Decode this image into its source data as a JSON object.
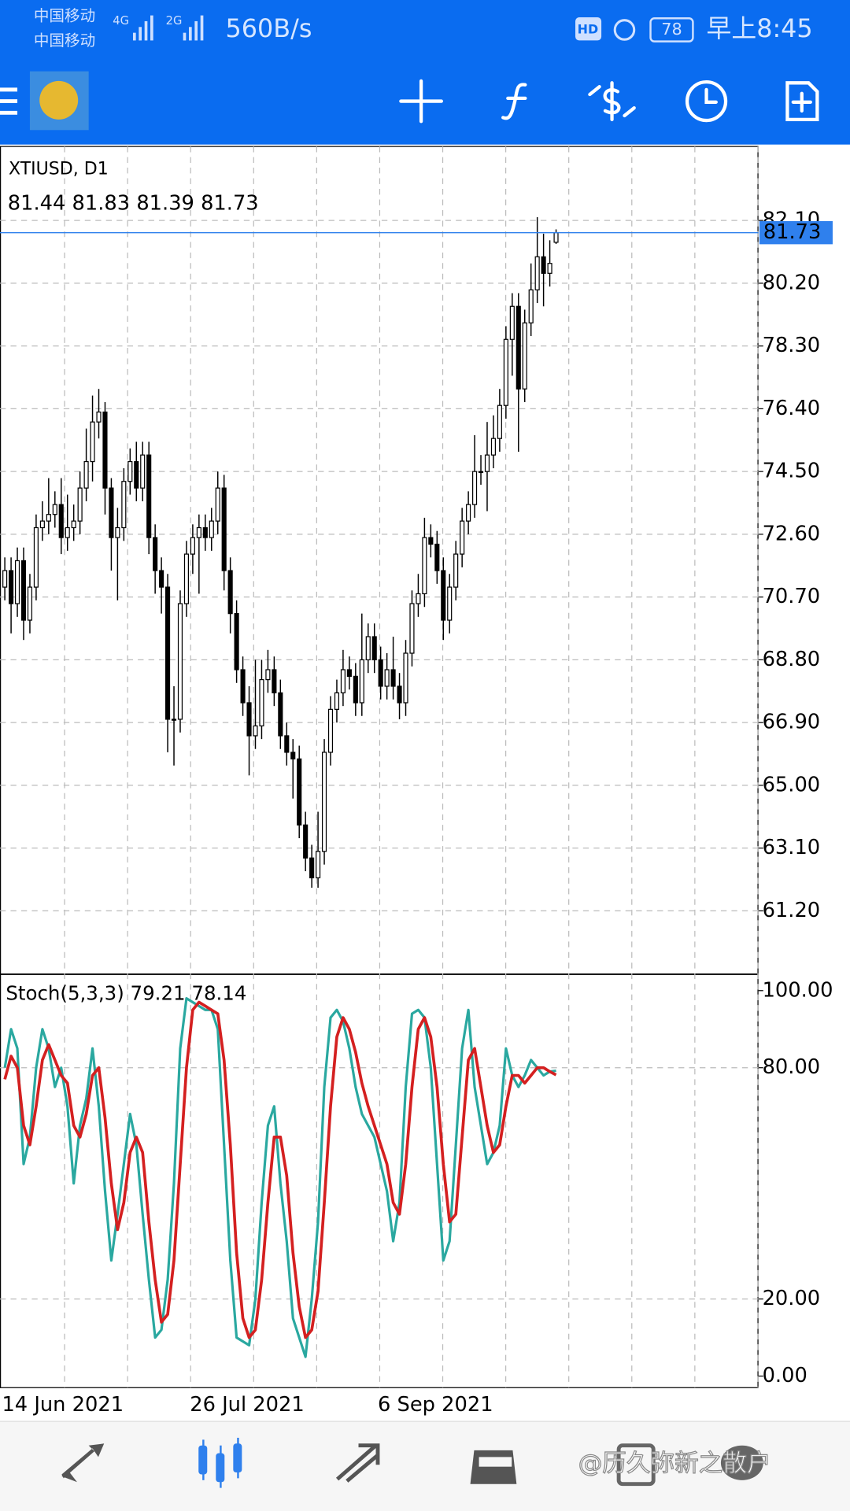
{
  "status_bar": {
    "carrier_1": "中国移动",
    "carrier_2": "中国移动",
    "network_1": "4G",
    "network_2": "2G",
    "speed": "560B/s",
    "hd": "HD",
    "battery": "78",
    "time": "早上8:45"
  },
  "watermark": "@历久弥新之散户",
  "chart_data": {
    "type": "candlestick",
    "title": "XTIUSD, D1",
    "categories": [
      "14 Jun 2021",
      null,
      null,
      null,
      null,
      null,
      null,
      null,
      null,
      null,
      null,
      null,
      null,
      null,
      null,
      null,
      null,
      null,
      null,
      null,
      null,
      null,
      null,
      null,
      null,
      null,
      null,
      null,
      null,
      null,
      "26 Jul 2021",
      null,
      null,
      null,
      null,
      null,
      null,
      null,
      null,
      null,
      null,
      null,
      null,
      null,
      null,
      null,
      null,
      null,
      null,
      null,
      null,
      null,
      null,
      null,
      null,
      null,
      null,
      null,
      null,
      null,
      "6 Sep 2021",
      null,
      null,
      null,
      null,
      null,
      null,
      null,
      null,
      null,
      null,
      null,
      null,
      null,
      null,
      null,
      null,
      null,
      null,
      null,
      null,
      null,
      null,
      null,
      null,
      null,
      null,
      null,
      null
    ],
    "open": [
      71.0,
      71.5,
      70.5,
      71.8,
      70.0,
      71.0,
      72.8,
      73.0,
      73.2,
      73.5,
      72.5,
      72.8,
      73.0,
      74.0,
      74.8,
      76.0,
      76.3,
      74.0,
      72.5,
      72.8,
      74.2,
      74.8,
      74.0,
      75.0,
      72.5,
      71.5,
      71.0,
      67.0,
      67.0,
      70.5,
      72.0,
      72.5,
      72.8,
      72.5,
      73.0,
      74.0,
      71.5,
      70.2,
      68.5,
      67.5,
      66.5,
      66.8,
      68.2,
      68.5,
      67.8,
      66.5,
      66.0,
      65.8,
      63.8,
      62.8,
      62.2,
      63.0,
      66.0,
      67.3,
      67.8,
      68.5,
      68.3,
      67.5,
      68.8,
      69.5,
      68.8,
      68.0,
      68.5,
      68.0,
      67.5,
      69.0,
      70.5,
      70.8,
      72.5,
      72.3,
      71.5,
      70.0,
      71.0,
      72.0,
      73.0,
      73.5,
      74.5,
      74.5,
      75.0,
      75.5,
      76.5,
      78.5,
      79.5,
      77.0,
      79.0,
      80.0,
      81.0,
      80.5,
      81.44
    ],
    "high": [
      71.9,
      71.9,
      72.2,
      72.2,
      71.4,
      73.2,
      73.6,
      74.3,
      73.9,
      74.3,
      73.8,
      73.5,
      74.5,
      75.8,
      76.8,
      77.0,
      76.6,
      74.3,
      73.4,
      74.6,
      75.2,
      75.4,
      75.4,
      75.4,
      72.9,
      71.9,
      71.4,
      68.0,
      70.9,
      72.4,
      72.9,
      73.2,
      73.2,
      73.4,
      74.5,
      74.4,
      71.9,
      70.6,
      68.9,
      68.0,
      68.8,
      68.8,
      69.1,
      68.9,
      68.2,
      66.9,
      66.4,
      66.2,
      64.2,
      63.2,
      64.2,
      66.4,
      67.7,
      68.2,
      69.1,
      68.9,
      68.7,
      70.2,
      69.9,
      69.9,
      69.2,
      69.0,
      69.5,
      68.4,
      69.4,
      70.9,
      71.4,
      73.1,
      72.9,
      72.7,
      71.9,
      71.4,
      72.4,
      73.4,
      73.9,
      75.6,
      75.0,
      76.0,
      76.2,
      77.0,
      78.9,
      79.9,
      79.9,
      79.4,
      80.8,
      82.2,
      81.7,
      81.5,
      81.83
    ],
    "low": [
      70.6,
      69.6,
      70.1,
      69.4,
      69.6,
      70.6,
      72.4,
      72.6,
      72.8,
      72.0,
      72.1,
      72.4,
      72.6,
      73.6,
      74.2,
      75.5,
      73.2,
      71.5,
      70.6,
      72.4,
      73.8,
      73.6,
      73.6,
      72.0,
      70.8,
      70.2,
      66.0,
      65.6,
      66.6,
      70.1,
      71.4,
      70.8,
      72.1,
      72.1,
      72.6,
      70.9,
      69.6,
      68.1,
      67.1,
      65.3,
      66.1,
      66.4,
      67.8,
      67.4,
      66.1,
      65.6,
      64.6,
      63.4,
      62.4,
      61.9,
      61.9,
      62.6,
      65.6,
      66.9,
      67.4,
      67.9,
      67.1,
      67.1,
      68.4,
      68.4,
      67.6,
      67.6,
      67.6,
      67.0,
      67.1,
      68.6,
      70.1,
      70.4,
      71.9,
      71.1,
      69.4,
      69.6,
      70.6,
      71.6,
      72.6,
      73.1,
      74.1,
      73.3,
      74.6,
      75.1,
      76.1,
      77.4,
      75.1,
      76.6,
      78.6,
      79.6,
      79.5,
      80.1,
      81.39
    ],
    "close": [
      71.5,
      70.5,
      71.8,
      70.0,
      71.0,
      72.8,
      73.0,
      73.2,
      73.5,
      72.5,
      72.8,
      73.0,
      74.0,
      74.8,
      76.0,
      76.3,
      74.0,
      72.5,
      72.8,
      74.2,
      74.8,
      74.0,
      75.0,
      72.5,
      71.5,
      71.0,
      67.0,
      67.0,
      70.5,
      72.0,
      72.5,
      72.8,
      72.5,
      73.0,
      74.0,
      71.5,
      70.2,
      68.5,
      67.5,
      66.5,
      66.8,
      68.2,
      68.5,
      67.8,
      66.5,
      66.0,
      65.8,
      63.8,
      62.8,
      62.2,
      63.0,
      66.0,
      67.3,
      67.8,
      68.5,
      68.3,
      67.5,
      68.8,
      69.5,
      68.8,
      68.0,
      68.5,
      68.0,
      67.5,
      69.0,
      70.5,
      70.8,
      72.5,
      72.3,
      71.5,
      70.0,
      71.0,
      72.0,
      73.0,
      73.5,
      74.5,
      74.5,
      75.0,
      75.5,
      76.5,
      78.5,
      79.5,
      77.0,
      79.0,
      80.0,
      81.0,
      80.5,
      80.8,
      81.73
    ],
    "up_color": "#ffffff",
    "down_color": "#000000",
    "price_line_color": "#2f80ed",
    "ylim": [
      59.31,
      84.34
    ],
    "yticks": [
      {
        "value": 61.2,
        "label": "61.20"
      },
      {
        "value": 63.1,
        "label": "63.10"
      },
      {
        "value": 65.0,
        "label": "65.00"
      },
      {
        "value": 66.9,
        "label": "66.90"
      },
      {
        "value": 68.8,
        "label": "68.80"
      },
      {
        "value": 70.7,
        "label": "70.70"
      },
      {
        "value": 72.6,
        "label": "72.60"
      },
      {
        "value": 74.5,
        "label": "74.50"
      },
      {
        "value": 76.4,
        "label": "76.40"
      },
      {
        "value": 78.3,
        "label": "78.30"
      },
      {
        "value": 80.2,
        "label": "80.20"
      },
      {
        "value": 82.1,
        "label": "82.10"
      }
    ],
    "grid": true,
    "indicator": {
      "name": "Stoch(5,3,3)",
      "ylim": [
        -3,
        104
      ],
      "yticks": [
        {
          "value": 0,
          "label": "0.00"
        },
        {
          "value": 20,
          "label": "20.00"
        },
        {
          "value": 80,
          "label": "80.00"
        },
        {
          "value": 100,
          "label": "100.00"
        }
      ],
      "levels": [
        20,
        80
      ],
      "series": [
        {
          "color": "#2aa8a0",
          "values": [
            80,
            90,
            85,
            55,
            62,
            80,
            90,
            85,
            75,
            80,
            70,
            50,
            65,
            72,
            85,
            70,
            48,
            30,
            42,
            55,
            68,
            60,
            42,
            25,
            10,
            12,
            25,
            50,
            85,
            98,
            97,
            96,
            95,
            95,
            90,
            60,
            30,
            10,
            9,
            8,
            20,
            45,
            65,
            70,
            50,
            35,
            15,
            10,
            5,
            20,
            40,
            75,
            93,
            95,
            92,
            85,
            75,
            68,
            65,
            62,
            55,
            48,
            35,
            45,
            75,
            94,
            95,
            93,
            80,
            55,
            30,
            35,
            60,
            85,
            95,
            75,
            65,
            55,
            58,
            65,
            85,
            78,
            75,
            78,
            82,
            80,
            78,
            79,
            79.21
          ]
        },
        {
          "color": "#d42020",
          "values": [
            77,
            83,
            80,
            65,
            60,
            70,
            82,
            86,
            82,
            78,
            76,
            65,
            62,
            68,
            78,
            80,
            67,
            50,
            38,
            45,
            58,
            62,
            58,
            40,
            25,
            14,
            16,
            30,
            55,
            80,
            95,
            97,
            96,
            95,
            94,
            82,
            60,
            32,
            15,
            10,
            12,
            25,
            45,
            62,
            62,
            52,
            32,
            18,
            10,
            12,
            22,
            45,
            70,
            88,
            93,
            90,
            84,
            76,
            70,
            65,
            60,
            55,
            45,
            42,
            55,
            75,
            90,
            93,
            88,
            75,
            55,
            40,
            42,
            62,
            82,
            85,
            75,
            65,
            58,
            60,
            70,
            78,
            78,
            76,
            78,
            80,
            80,
            79,
            78.14
          ]
        }
      ]
    }
  }
}
